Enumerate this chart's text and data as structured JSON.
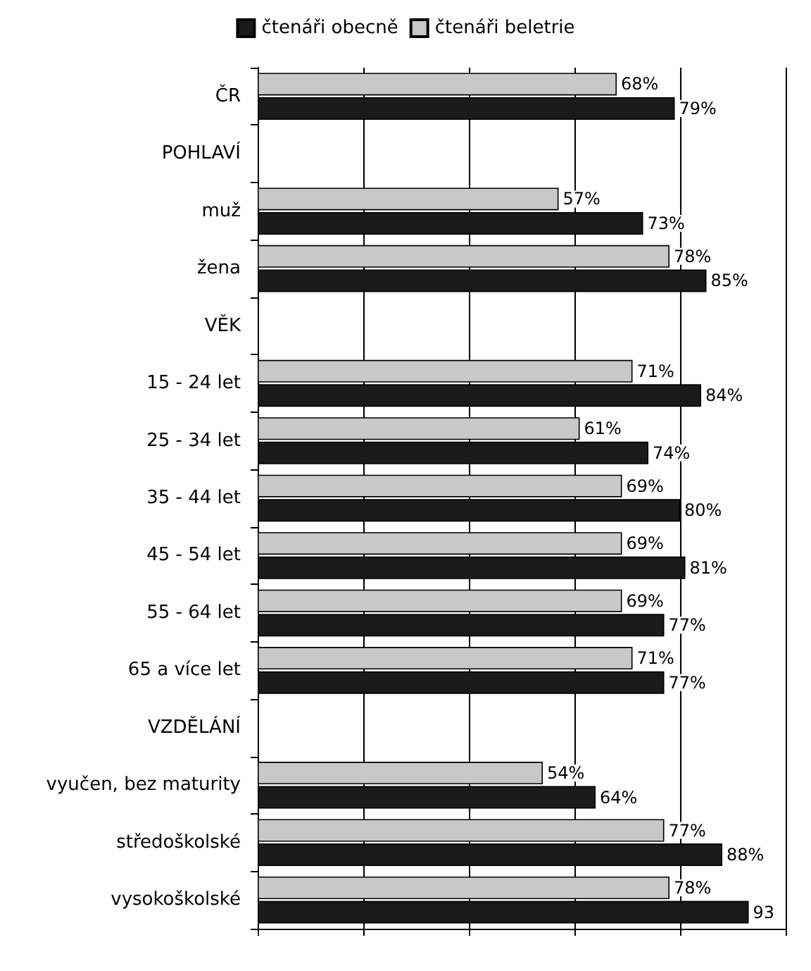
{
  "chart_data": {
    "type": "bar",
    "orientation": "horizontal",
    "categories": [
      "ČR",
      "POHLAVÍ",
      "muž",
      "žena",
      "VĚK",
      "15 - 24 let",
      "25 - 34 let",
      "35 - 44 let",
      "45 - 54 let",
      "55 - 64 let",
      "65 a více let",
      "VZDĚLÁNÍ",
      "vyučen, bez maturity",
      "středoškolské",
      "vysokoškolské"
    ],
    "series": [
      {
        "name": "čtenáři obecně",
        "color": "#1a1a1a",
        "values": [
          79,
          null,
          73,
          85,
          null,
          84,
          74,
          80,
          81,
          77,
          77,
          null,
          64,
          88,
          93
        ],
        "value_labels": [
          "79%",
          null,
          "73%",
          "85%",
          null,
          "84%",
          "74%",
          "80%",
          "81%",
          "77%",
          "77%",
          null,
          "64%",
          "88%",
          "93"
        ]
      },
      {
        "name": "čtenáři beletrie",
        "color": "#c8c8c8",
        "values": [
          68,
          null,
          57,
          78,
          null,
          71,
          61,
          69,
          69,
          69,
          71,
          null,
          54,
          77,
          78
        ],
        "value_labels": [
          "68%",
          null,
          "57%",
          "78%",
          null,
          "71%",
          "61%",
          "69%",
          "69%",
          "69%",
          "71%",
          null,
          "54%",
          "77%",
          "78%"
        ]
      }
    ],
    "xlim": [
      0,
      100
    ],
    "xticks": [
      {
        "value": 0,
        "label": null
      },
      {
        "value": 20,
        "label": null
      },
      {
        "value": 40,
        "label": null
      },
      {
        "value": 60,
        "label": null
      },
      {
        "value": 80,
        "label": null
      },
      {
        "value": 100,
        "label": null
      }
    ],
    "grid": "x",
    "legend": "top"
  }
}
